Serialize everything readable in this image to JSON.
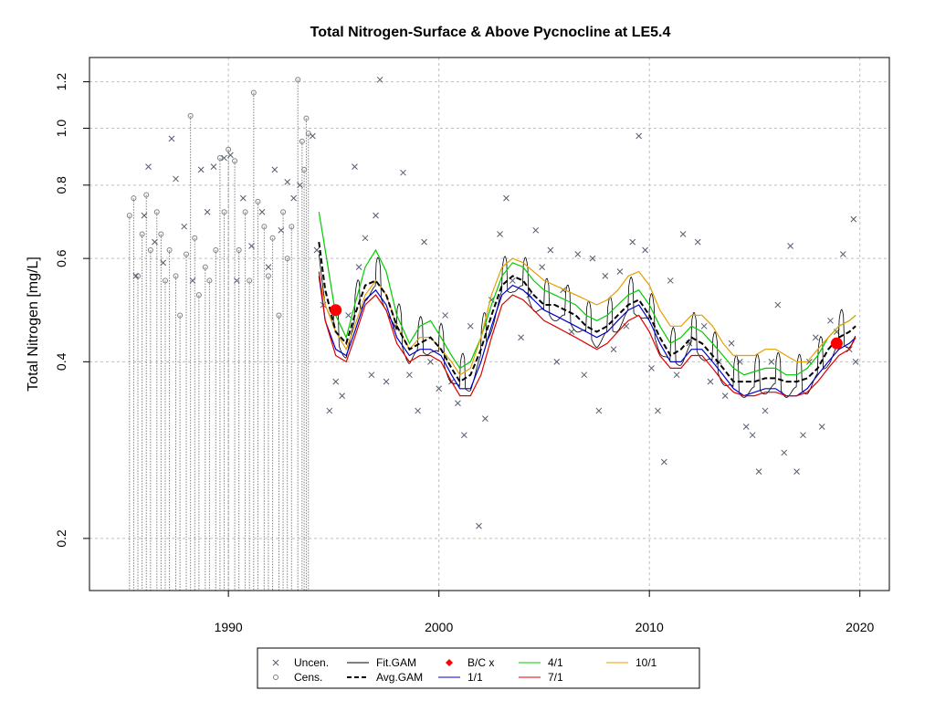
{
  "chart_data": {
    "type": "scatter",
    "title": "Total Nitrogen-Surface & Above Pycnocline at LE5.4",
    "xlabel": "",
    "ylabel": "Total Nitrogen [mg/L]",
    "y_scale": "log",
    "xlim": [
      1983.4,
      2021.4
    ],
    "ylim": [
      0.163,
      1.32
    ],
    "grid": true,
    "x_ticks": [
      1990,
      2000,
      2010,
      2020
    ],
    "y_ticks": [
      0.2,
      0.4,
      0.6,
      0.8,
      1.0,
      1.2
    ],
    "x_tick_labels": [
      "1990",
      "2000",
      "2010",
      "2020"
    ],
    "y_tick_labels": [
      "0.2",
      "0.4",
      "0.6",
      "0.8",
      "1.0",
      "1.2"
    ],
    "colors": {
      "points": "#555b6e",
      "fit_gam": "#000000",
      "avg_gam": "#000000",
      "bc": "#ff0000",
      "s_1_1": "#0000cd",
      "s_4_1": "#00cc00",
      "s_7_1": "#dd0000",
      "s_10_1": "#e69f00",
      "grid": "#bfbfbf",
      "censored": "#808080"
    },
    "legend": {
      "position": "bottom",
      "entries": [
        {
          "key": "uncen",
          "label": "Uncen.",
          "symbol": "x"
        },
        {
          "key": "cens",
          "label": "Cens.",
          "symbol": "o"
        },
        {
          "key": "fit",
          "label": "Fit.GAM",
          "symbol": "line"
        },
        {
          "key": "avg",
          "label": "Avg.GAM",
          "symbol": "dash"
        },
        {
          "key": "bc",
          "label": "B/C x",
          "symbol": "diamond"
        },
        {
          "key": "s11",
          "label": "1/1",
          "symbol": "line"
        },
        {
          "key": "s41",
          "label": "4/1",
          "symbol": "line"
        },
        {
          "key": "s71",
          "label": "7/1",
          "symbol": "line"
        },
        {
          "key": "s101",
          "label": "10/1",
          "symbol": "line"
        }
      ]
    },
    "censored_points": [
      [
        1985.3,
        0.71
      ],
      [
        1985.5,
        0.76
      ],
      [
        1985.7,
        0.56
      ],
      [
        1985.9,
        0.66
      ],
      [
        1986.1,
        0.77
      ],
      [
        1986.3,
        0.62
      ],
      [
        1986.6,
        0.72
      ],
      [
        1986.8,
        0.66
      ],
      [
        1987.0,
        0.55
      ],
      [
        1987.2,
        0.62
      ],
      [
        1987.5,
        0.56
      ],
      [
        1987.7,
        0.48
      ],
      [
        1988.0,
        0.61
      ],
      [
        1988.2,
        1.05
      ],
      [
        1988.4,
        0.65
      ],
      [
        1988.6,
        0.52
      ],
      [
        1988.9,
        0.58
      ],
      [
        1989.1,
        0.55
      ],
      [
        1989.4,
        0.62
      ],
      [
        1989.6,
        0.89
      ],
      [
        1989.8,
        0.72
      ],
      [
        1990.0,
        0.92
      ],
      [
        1990.3,
        0.88
      ],
      [
        1990.5,
        0.62
      ],
      [
        1990.8,
        0.72
      ],
      [
        1991.0,
        0.55
      ],
      [
        1991.2,
        1.15
      ],
      [
        1991.4,
        0.75
      ],
      [
        1991.7,
        0.68
      ],
      [
        1991.9,
        0.56
      ],
      [
        1992.1,
        0.65
      ],
      [
        1992.4,
        0.48
      ],
      [
        1992.6,
        0.72
      ],
      [
        1992.8,
        0.6
      ],
      [
        1993.0,
        0.68
      ],
      [
        1993.3,
        1.21
      ],
      [
        1993.5,
        0.95
      ],
      [
        1993.6,
        0.85
      ],
      [
        1993.7,
        1.04
      ],
      [
        1993.8,
        0.98
      ]
    ],
    "uncensored_points": [
      [
        1985.6,
        0.56
      ],
      [
        1986.0,
        0.71
      ],
      [
        1986.2,
        0.86
      ],
      [
        1986.5,
        0.64
      ],
      [
        1986.9,
        0.59
      ],
      [
        1987.3,
        0.96
      ],
      [
        1987.5,
        0.82
      ],
      [
        1987.9,
        0.68
      ],
      [
        1988.3,
        0.55
      ],
      [
        1988.7,
        0.85
      ],
      [
        1989.0,
        0.72
      ],
      [
        1989.3,
        0.86
      ],
      [
        1989.8,
        0.89
      ],
      [
        1990.1,
        0.9
      ],
      [
        1990.4,
        0.55
      ],
      [
        1990.7,
        0.76
      ],
      [
        1991.1,
        0.63
      ],
      [
        1991.6,
        0.72
      ],
      [
        1991.9,
        0.58
      ],
      [
        1992.2,
        0.85
      ],
      [
        1992.5,
        0.67
      ],
      [
        1992.8,
        0.81
      ],
      [
        1993.1,
        0.76
      ],
      [
        1993.4,
        0.8
      ],
      [
        1994.0,
        0.97
      ],
      [
        1994.2,
        0.62
      ],
      [
        1994.5,
        0.5
      ],
      [
        1994.8,
        0.33
      ],
      [
        1995.1,
        0.37
      ],
      [
        1995.4,
        0.35
      ],
      [
        1995.7,
        0.48
      ],
      [
        1996.0,
        0.86
      ],
      [
        1996.2,
        0.58
      ],
      [
        1996.5,
        0.65
      ],
      [
        1996.8,
        0.38
      ],
      [
        1997.0,
        0.71
      ],
      [
        1997.2,
        1.21
      ],
      [
        1997.5,
        0.37
      ],
      [
        1997.9,
        0.46
      ],
      [
        1998.3,
        0.84
      ],
      [
        1998.6,
        0.38
      ],
      [
        1999.0,
        0.33
      ],
      [
        1999.3,
        0.64
      ],
      [
        1999.6,
        0.4
      ],
      [
        2000.0,
        0.36
      ],
      [
        2000.3,
        0.48
      ],
      [
        2000.6,
        0.37
      ],
      [
        2000.9,
        0.34
      ],
      [
        2001.2,
        0.3
      ],
      [
        2001.5,
        0.46
      ],
      [
        2001.9,
        0.21
      ],
      [
        2002.2,
        0.32
      ],
      [
        2002.5,
        0.51
      ],
      [
        2002.9,
        0.66
      ],
      [
        2003.2,
        0.76
      ],
      [
        2003.5,
        0.55
      ],
      [
        2003.9,
        0.44
      ],
      [
        2004.3,
        0.52
      ],
      [
        2004.6,
        0.67
      ],
      [
        2004.9,
        0.58
      ],
      [
        2005.3,
        0.62
      ],
      [
        2005.6,
        0.4
      ],
      [
        2005.9,
        0.53
      ],
      [
        2006.3,
        0.45
      ],
      [
        2006.6,
        0.61
      ],
      [
        2006.9,
        0.38
      ],
      [
        2007.3,
        0.6
      ],
      [
        2007.6,
        0.33
      ],
      [
        2007.9,
        0.56
      ],
      [
        2008.3,
        0.42
      ],
      [
        2008.6,
        0.57
      ],
      [
        2008.9,
        0.46
      ],
      [
        2009.2,
        0.64
      ],
      [
        2009.5,
        0.97
      ],
      [
        2009.8,
        0.62
      ],
      [
        2010.1,
        0.39
      ],
      [
        2010.4,
        0.33
      ],
      [
        2010.7,
        0.27
      ],
      [
        2011.0,
        0.55
      ],
      [
        2011.3,
        0.38
      ],
      [
        2011.6,
        0.66
      ],
      [
        2011.9,
        0.43
      ],
      [
        2012.3,
        0.64
      ],
      [
        2012.6,
        0.46
      ],
      [
        2012.9,
        0.37
      ],
      [
        2013.3,
        0.4
      ],
      [
        2013.6,
        0.35
      ],
      [
        2013.9,
        0.43
      ],
      [
        2014.3,
        0.4
      ],
      [
        2014.6,
        0.31
      ],
      [
        2014.9,
        0.3
      ],
      [
        2015.2,
        0.26
      ],
      [
        2015.5,
        0.33
      ],
      [
        2015.8,
        0.4
      ],
      [
        2016.1,
        0.5
      ],
      [
        2016.4,
        0.28
      ],
      [
        2016.7,
        0.63
      ],
      [
        2017.0,
        0.26
      ],
      [
        2017.3,
        0.3
      ],
      [
        2017.6,
        0.4
      ],
      [
        2017.9,
        0.44
      ],
      [
        2018.2,
        0.31
      ],
      [
        2018.6,
        0.47
      ],
      [
        2018.9,
        0.45
      ],
      [
        2019.2,
        0.61
      ],
      [
        2019.5,
        0.42
      ],
      [
        2019.7,
        0.7
      ],
      [
        2019.8,
        0.4
      ]
    ],
    "bc_points": [
      [
        1995.1,
        0.49
      ],
      [
        2018.9,
        0.43
      ]
    ],
    "series": [
      {
        "key": "s41",
        "label": "4/1",
        "x": [
          1994.3,
          1994.6,
          1995.1,
          1995.6,
          1996.0,
          1996.5,
          1997.0,
          1997.5,
          1998.0,
          1998.6,
          1999.1,
          1999.6,
          2000.1,
          2000.6,
          2001.0,
          2001.5,
          2002.0,
          2002.5,
          2003.0,
          2003.5,
          2004.0,
          2004.5,
          2005.0,
          2005.5,
          2006.0,
          2006.5,
          2007.0,
          2007.5,
          2008.0,
          2008.5,
          2009.0,
          2009.5,
          2010.0,
          2010.5,
          2011.0,
          2011.5,
          2012.0,
          2012.5,
          2013.0,
          2013.5,
          2014.0,
          2014.5,
          2015.0,
          2015.5,
          2016.0,
          2016.5,
          2017.0,
          2017.5,
          2018.0,
          2018.5,
          2019.0,
          2019.5,
          2019.8
        ],
        "y": [
          0.72,
          0.62,
          0.48,
          0.44,
          0.5,
          0.58,
          0.62,
          0.57,
          0.48,
          0.43,
          0.46,
          0.47,
          0.44,
          0.41,
          0.39,
          0.4,
          0.44,
          0.5,
          0.56,
          0.59,
          0.58,
          0.55,
          0.53,
          0.52,
          0.51,
          0.5,
          0.48,
          0.47,
          0.48,
          0.5,
          0.52,
          0.53,
          0.5,
          0.46,
          0.43,
          0.44,
          0.46,
          0.45,
          0.43,
          0.41,
          0.39,
          0.38,
          0.385,
          0.39,
          0.39,
          0.38,
          0.38,
          0.39,
          0.41,
          0.44,
          0.46,
          0.47,
          0.48
        ]
      },
      {
        "key": "s101",
        "label": "10/1",
        "x": [
          1994.3,
          1994.6,
          1995.1,
          1995.6,
          1996.0,
          1996.5,
          1997.0,
          1997.5,
          1998.0,
          1998.6,
          1999.1,
          1999.6,
          2000.1,
          2000.6,
          2001.0,
          2001.5,
          2002.0,
          2002.5,
          2003.0,
          2003.5,
          2004.0,
          2004.5,
          2005.0,
          2005.5,
          2006.0,
          2006.5,
          2007.0,
          2007.5,
          2008.0,
          2008.5,
          2009.0,
          2009.5,
          2010.0,
          2010.5,
          2011.0,
          2011.5,
          2012.0,
          2012.5,
          2013.0,
          2013.5,
          2014.0,
          2014.5,
          2015.0,
          2015.5,
          2016.0,
          2016.5,
          2017.0,
          2017.5,
          2018.0,
          2018.5,
          2019.0,
          2019.5,
          2019.8
        ],
        "y": [
          0.56,
          0.5,
          0.45,
          0.42,
          0.46,
          0.52,
          0.55,
          0.52,
          0.46,
          0.42,
          0.44,
          0.44,
          0.42,
          0.4,
          0.38,
          0.39,
          0.44,
          0.52,
          0.58,
          0.6,
          0.59,
          0.57,
          0.55,
          0.54,
          0.53,
          0.52,
          0.51,
          0.5,
          0.51,
          0.53,
          0.56,
          0.57,
          0.54,
          0.49,
          0.46,
          0.46,
          0.48,
          0.48,
          0.46,
          0.43,
          0.41,
          0.41,
          0.41,
          0.42,
          0.42,
          0.41,
          0.4,
          0.4,
          0.42,
          0.44,
          0.46,
          0.47,
          0.48
        ]
      },
      {
        "key": "s11",
        "label": "1/1",
        "x": [
          1994.3,
          1994.6,
          1995.1,
          1995.6,
          1996.0,
          1996.5,
          1997.0,
          1997.5,
          1998.0,
          1998.6,
          1999.1,
          1999.6,
          2000.1,
          2000.6,
          2001.0,
          2001.5,
          2002.0,
          2002.5,
          2003.0,
          2003.5,
          2004.0,
          2004.5,
          2005.0,
          2005.5,
          2006.0,
          2006.5,
          2007.0,
          2007.5,
          2008.0,
          2008.5,
          2009.0,
          2009.5,
          2010.0,
          2010.5,
          2011.0,
          2011.5,
          2012.0,
          2012.5,
          2013.0,
          2013.5,
          2014.0,
          2014.5,
          2015.0,
          2015.5,
          2016.0,
          2016.5,
          2017.0,
          2017.5,
          2018.0,
          2018.5,
          2019.0,
          2019.5,
          2019.8
        ],
        "y": [
          0.56,
          0.47,
          0.42,
          0.41,
          0.45,
          0.51,
          0.53,
          0.5,
          0.44,
          0.41,
          0.42,
          0.42,
          0.41,
          0.38,
          0.36,
          0.36,
          0.4,
          0.46,
          0.52,
          0.54,
          0.53,
          0.51,
          0.49,
          0.48,
          0.47,
          0.46,
          0.45,
          0.44,
          0.45,
          0.47,
          0.49,
          0.5,
          0.47,
          0.43,
          0.4,
          0.4,
          0.42,
          0.42,
          0.4,
          0.38,
          0.36,
          0.35,
          0.355,
          0.36,
          0.36,
          0.35,
          0.35,
          0.36,
          0.38,
          0.4,
          0.42,
          0.43,
          0.44
        ]
      },
      {
        "key": "s71",
        "label": "7/1",
        "x": [
          1994.3,
          1994.6,
          1995.1,
          1995.6,
          1996.0,
          1996.5,
          1997.0,
          1997.5,
          1998.0,
          1998.6,
          1999.1,
          1999.6,
          2000.1,
          2000.6,
          2001.0,
          2001.5,
          2002.0,
          2002.5,
          2003.0,
          2003.5,
          2004.0,
          2004.5,
          2005.0,
          2005.5,
          2006.0,
          2006.5,
          2007.0,
          2007.5,
          2008.0,
          2008.5,
          2009.0,
          2009.5,
          2010.0,
          2010.5,
          2011.0,
          2011.5,
          2012.0,
          2012.5,
          2013.0,
          2013.5,
          2014.0,
          2014.5,
          2015.0,
          2015.5,
          2016.0,
          2016.5,
          2017.0,
          2017.5,
          2018.0,
          2018.5,
          2019.0,
          2019.5,
          2019.8
        ],
        "y": [
          0.57,
          0.47,
          0.41,
          0.4,
          0.44,
          0.5,
          0.52,
          0.49,
          0.43,
          0.4,
          0.41,
          0.41,
          0.4,
          0.37,
          0.35,
          0.35,
          0.38,
          0.44,
          0.5,
          0.52,
          0.51,
          0.49,
          0.47,
          0.46,
          0.45,
          0.44,
          0.43,
          0.42,
          0.43,
          0.45,
          0.47,
          0.48,
          0.45,
          0.41,
          0.39,
          0.39,
          0.41,
          0.41,
          0.39,
          0.37,
          0.355,
          0.35,
          0.35,
          0.355,
          0.355,
          0.35,
          0.35,
          0.355,
          0.37,
          0.39,
          0.41,
          0.42,
          0.44
        ]
      },
      {
        "key": "avg",
        "label": "Avg.GAM",
        "x": [
          1994.3,
          1994.6,
          1995.1,
          1995.6,
          1996.0,
          1996.5,
          1997.0,
          1997.5,
          1998.0,
          1998.6,
          1999.1,
          1999.6,
          2000.1,
          2000.6,
          2001.0,
          2001.5,
          2002.0,
          2002.5,
          2003.0,
          2003.5,
          2004.0,
          2004.5,
          2005.0,
          2005.5,
          2006.0,
          2006.5,
          2007.0,
          2007.5,
          2008.0,
          2008.5,
          2009.0,
          2009.5,
          2010.0,
          2010.5,
          2011.0,
          2011.5,
          2012.0,
          2012.5,
          2013.0,
          2013.5,
          2014.0,
          2014.5,
          2015.0,
          2015.5,
          2016.0,
          2016.5,
          2017.0,
          2017.5,
          2018.0,
          2018.5,
          2019.0,
          2019.5,
          2019.8
        ],
        "y": [
          0.64,
          0.53,
          0.45,
          0.43,
          0.48,
          0.54,
          0.55,
          0.52,
          0.46,
          0.42,
          0.43,
          0.44,
          0.42,
          0.39,
          0.37,
          0.38,
          0.42,
          0.48,
          0.54,
          0.56,
          0.55,
          0.52,
          0.5,
          0.5,
          0.49,
          0.48,
          0.46,
          0.45,
          0.46,
          0.48,
          0.5,
          0.51,
          0.48,
          0.44,
          0.41,
          0.42,
          0.44,
          0.43,
          0.41,
          0.39,
          0.37,
          0.37,
          0.37,
          0.375,
          0.375,
          0.37,
          0.37,
          0.375,
          0.39,
          0.42,
          0.44,
          0.45,
          0.46
        ]
      }
    ]
  }
}
